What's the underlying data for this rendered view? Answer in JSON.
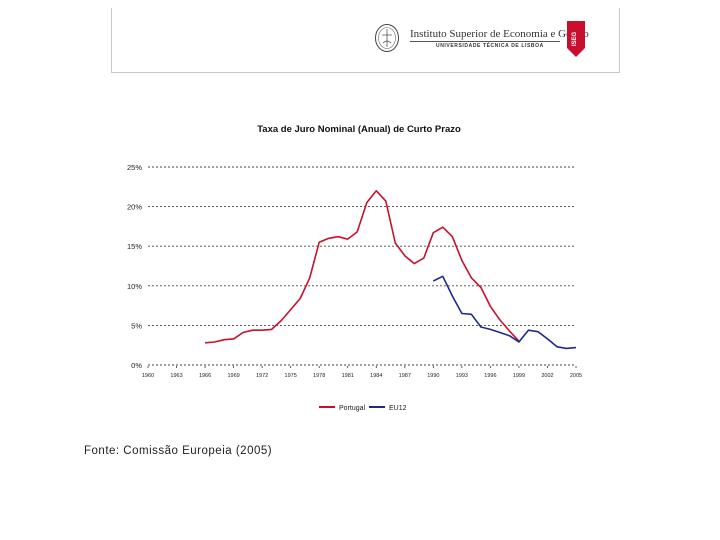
{
  "header": {
    "institution_name": "Instituto Superior de Economia e Gestão",
    "university": "UNIVERSIDADE TÉCNICA DE LISBOA",
    "crest_text": "ISEG"
  },
  "source_note": "Fonte: Comissão Europeia (2005)",
  "colors": {
    "portugal": "#c8102e",
    "eu12": "#1f2a8c",
    "grid": "#444444"
  },
  "chart_data": {
    "type": "line",
    "title": "Taxa de Juro Nominal (Anual) de Curto Prazo",
    "xlabel": "",
    "ylabel": "",
    "ylim": [
      0,
      25
    ],
    "y_ticks": [
      0,
      5,
      10,
      15,
      20,
      25
    ],
    "y_tick_labels": [
      "0%",
      "5%",
      "10%",
      "15%",
      "20%",
      "25%"
    ],
    "x_ticks": [
      1960,
      1963,
      1966,
      1969,
      1972,
      1975,
      1978,
      1981,
      1984,
      1987,
      1990,
      1993,
      1996,
      1999,
      2002,
      2005
    ],
    "x_tick_labels": [
      "1960",
      "1963",
      "1966",
      "1969",
      "1972",
      "1975",
      "1978",
      "1981",
      "1984",
      "1987",
      "1990",
      "1993",
      "1996",
      "1999",
      "2002",
      "2005"
    ],
    "xlim": [
      1960,
      2005
    ],
    "legend_position": "bottom",
    "series": [
      {
        "name": "Portugal",
        "x": [
          1966,
          1967,
          1968,
          1969,
          1970,
          1971,
          1972,
          1973,
          1974,
          1975,
          1976,
          1977,
          1978,
          1979,
          1980,
          1981,
          1982,
          1983,
          1984,
          1985,
          1986,
          1987,
          1988,
          1989,
          1990,
          1991,
          1992,
          1993,
          1994,
          1995,
          1996,
          1997,
          1998,
          1999
        ],
        "values": [
          2.8,
          2.9,
          3.2,
          3.3,
          4.1,
          4.4,
          4.4,
          4.5,
          5.6,
          7.0,
          8.4,
          11.0,
          15.5,
          16.0,
          16.2,
          15.9,
          16.8,
          20.5,
          22.0,
          20.7,
          15.4,
          13.8,
          12.8,
          13.5,
          16.7,
          17.4,
          16.2,
          13.2,
          11.0,
          9.8,
          7.4,
          5.7,
          4.3,
          3.0
        ]
      },
      {
        "name": "EU12",
        "x": [
          1990,
          1991,
          1992,
          1993,
          1994,
          1995,
          1996,
          1997,
          1998,
          1999,
          2000,
          2001,
          2002,
          2003,
          2004,
          2005
        ],
        "values": [
          10.6,
          11.2,
          8.7,
          6.5,
          6.4,
          4.8,
          4.5,
          4.1,
          3.7,
          2.9,
          4.4,
          4.2,
          3.3,
          2.3,
          2.1,
          2.2
        ]
      }
    ]
  }
}
